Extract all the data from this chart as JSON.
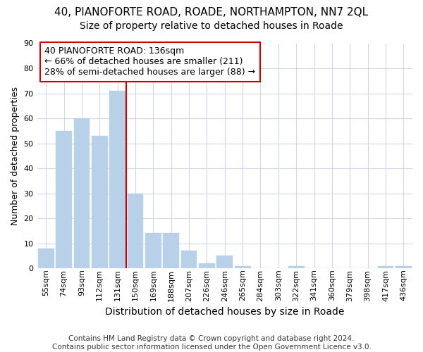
{
  "title": "40, PIANOFORTE ROAD, ROADE, NORTHAMPTON, NN7 2QL",
  "subtitle": "Size of property relative to detached houses in Roade",
  "xlabel": "Distribution of detached houses by size in Roade",
  "ylabel": "Number of detached properties",
  "categories": [
    "55sqm",
    "74sqm",
    "93sqm",
    "112sqm",
    "131sqm",
    "150sqm",
    "169sqm",
    "188sqm",
    "207sqm",
    "226sqm",
    "246sqm",
    "265sqm",
    "284sqm",
    "303sqm",
    "322sqm",
    "341sqm",
    "360sqm",
    "379sqm",
    "398sqm",
    "417sqm",
    "436sqm"
  ],
  "values": [
    8,
    55,
    60,
    53,
    71,
    30,
    14,
    14,
    7,
    2,
    5,
    1,
    0,
    0,
    1,
    0,
    0,
    0,
    0,
    1,
    1
  ],
  "bar_color": "#b8d0e8",
  "bar_edge_color": "#b8d0e8",
  "vline_x_index": 4,
  "vline_color": "#cc0000",
  "annotation_title": "40 PIANOFORTE ROAD: 136sqm",
  "annotation_line1": "← 66% of detached houses are smaller (211)",
  "annotation_line2": "28% of semi-detached houses are larger (88) →",
  "annotation_box_color": "#cc0000",
  "annotation_bg": "#ffffff",
  "ylim": [
    0,
    90
  ],
  "yticks": [
    0,
    10,
    20,
    30,
    40,
    50,
    60,
    70,
    80,
    90
  ],
  "grid_color": "#d0d8e8",
  "footer_line1": "Contains HM Land Registry data © Crown copyright and database right 2024.",
  "footer_line2": "Contains public sector information licensed under the Open Government Licence v3.0.",
  "bg_color": "#ffffff",
  "plot_bg_color": "#ffffff",
  "title_fontsize": 11,
  "subtitle_fontsize": 10,
  "ylabel_fontsize": 9,
  "xlabel_fontsize": 10,
  "tick_fontsize": 8,
  "ann_fontsize": 9,
  "footer_fontsize": 7.5
}
